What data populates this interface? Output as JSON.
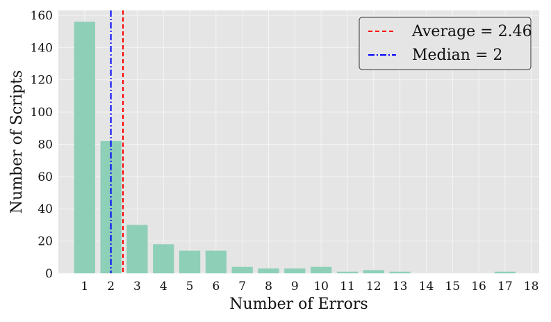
{
  "chart_data": {
    "type": "bar",
    "title": "",
    "xlabel": "Number of Errors",
    "ylabel": "Number of Scripts",
    "categories": [
      "1",
      "2",
      "3",
      "4",
      "5",
      "6",
      "7",
      "8",
      "9",
      "10",
      "11",
      "12",
      "13",
      "14",
      "15",
      "16",
      "17",
      "18"
    ],
    "x": [
      1,
      2,
      3,
      4,
      5,
      6,
      7,
      8,
      9,
      10,
      11,
      12,
      13,
      14,
      15,
      16,
      17,
      18
    ],
    "values": [
      156,
      82,
      30,
      18,
      14,
      14,
      4,
      3,
      3,
      4,
      1,
      2,
      1,
      0,
      0,
      0,
      1,
      0
    ],
    "ylim": [
      0,
      163
    ],
    "xlim": [
      0,
      18.3
    ],
    "yticks": [
      0,
      20,
      40,
      60,
      80,
      100,
      120,
      140,
      160
    ],
    "grid": true,
    "legend_position": "top-right",
    "reference_lines": [
      {
        "label": "Average = 2.46",
        "x": 2.46,
        "style": "dashed",
        "color": "#ff0000"
      },
      {
        "label": "Median = 2",
        "x": 2,
        "style": "dash-dot",
        "color": "#0000ff"
      }
    ],
    "colors": {
      "bar": "#8ecfb7",
      "background": "#e5e5e5",
      "grid": "#f4f4f4"
    }
  }
}
